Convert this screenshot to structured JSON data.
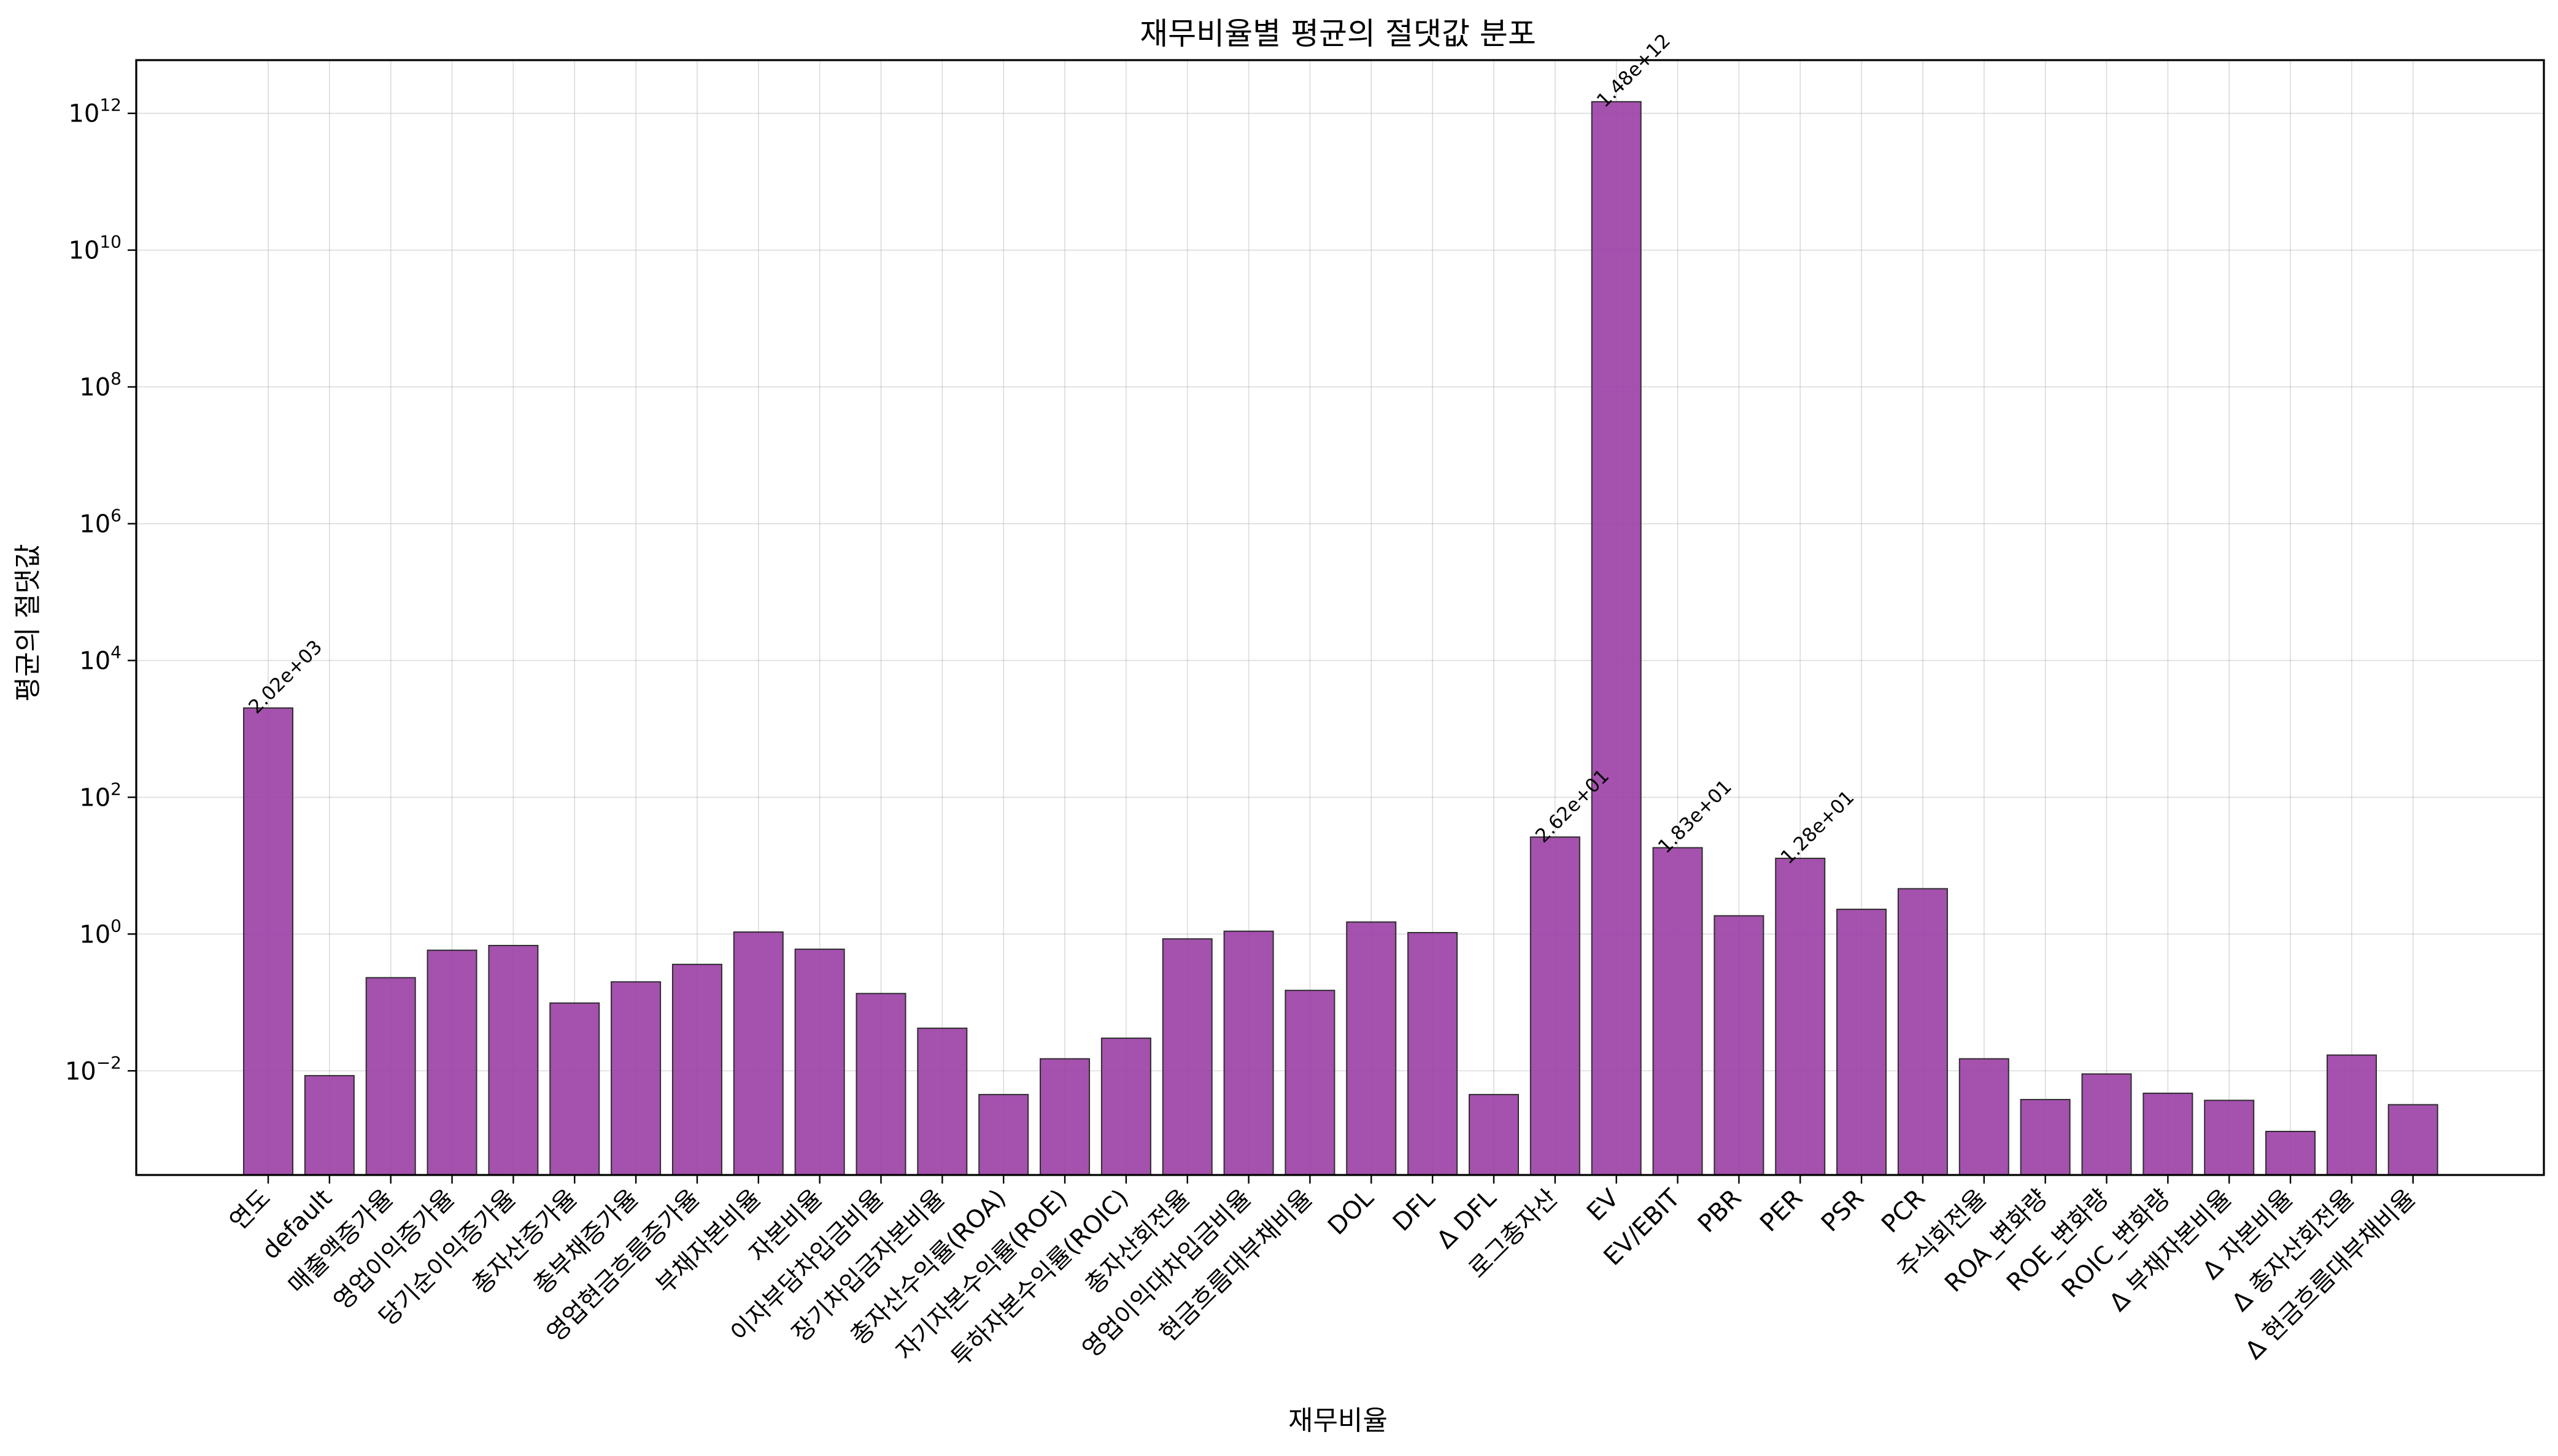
{
  "chart_data": {
    "type": "bar",
    "title": "재무비율별 평균의 절댓값 분포",
    "xlabel": "재무비율",
    "ylabel": "평균의 절댓값",
    "yscale": "log",
    "ylim": [
      0.0003,
      6000000000000
    ],
    "yticks": [
      0.01,
      1,
      100,
      10000,
      1000000,
      100000000,
      10000000000,
      1000000000000
    ],
    "ytick_labels": [
      {
        "base": "10",
        "exp": "−2"
      },
      {
        "base": "10",
        "exp": "0"
      },
      {
        "base": "10",
        "exp": "2"
      },
      {
        "base": "10",
        "exp": "4"
      },
      {
        "base": "10",
        "exp": "6"
      },
      {
        "base": "10",
        "exp": "8"
      },
      {
        "base": "10",
        "exp": "10"
      },
      {
        "base": "10",
        "exp": "12"
      }
    ],
    "grid": true,
    "bar_color": "#9b3ea5",
    "categories": [
      "연도",
      "default",
      "매출액증가율",
      "영업이익증가율",
      "당기순이익증가율",
      "총자산증가율",
      "총부채증가율",
      "영업현금흐름증가율",
      "부채자본비율",
      "자본비율",
      "이자부담차입금비율",
      "장기차입금자본비율",
      "총자산수익률(ROA)",
      "자기자본수익률(ROE)",
      "투하자본수익률(ROIC)",
      "총자산회전율",
      "영업이익대차입금비율",
      "현금흐름대부채비율",
      "DOL",
      "DFL",
      "Δ DFL",
      "로그총자산",
      "EV",
      "EV/EBIT",
      "PBR",
      "PER",
      "PSR",
      "PCR",
      "주식회전율",
      "ROA_변화량",
      "ROE_변화량",
      "ROIC_변화량",
      "Δ 부채자본비율",
      "Δ 자본비율",
      "Δ 총자산회전율",
      "Δ 현금흐름대부채비율"
    ],
    "values": [
      2020,
      0.0085,
      0.23,
      0.58,
      0.68,
      0.098,
      0.2,
      0.36,
      1.07,
      0.6,
      0.135,
      0.042,
      0.0045,
      0.015,
      0.03,
      0.85,
      1.1,
      0.15,
      1.5,
      1.05,
      0.0045,
      26.2,
      1480000000000,
      18.3,
      1.85,
      12.8,
      2.3,
      4.6,
      0.015,
      0.0038,
      0.009,
      0.0047,
      0.0037,
      0.0013,
      0.017,
      0.0032
    ],
    "data_labels": [
      {
        "index": 0,
        "text": "2.02e+03"
      },
      {
        "index": 21,
        "text": "2.62e+01"
      },
      {
        "index": 22,
        "text": "1.48e+12"
      },
      {
        "index": 23,
        "text": "1.83e+01"
      },
      {
        "index": 25,
        "text": "1.28e+01"
      }
    ]
  }
}
